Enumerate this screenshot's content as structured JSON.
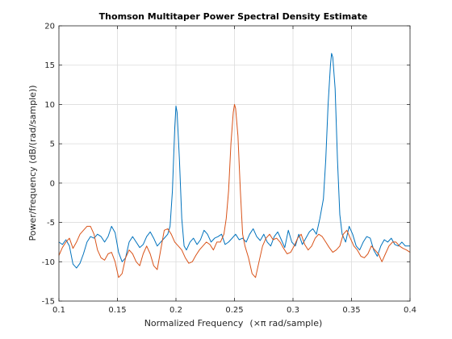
{
  "chart_data": {
    "type": "line",
    "title": "Thomson Multitaper Power Spectral Density Estimate",
    "xlabel_main": "Normalized Frequency",
    "xlabel_unit": "(×π rad/sample)",
    "ylabel": "Power/frequency (dB/(rad/sample))",
    "xlim": [
      0.1,
      0.4
    ],
    "ylim": [
      -15,
      20
    ],
    "grid": true,
    "xticks": [
      "0.1",
      "0.15",
      "0.2",
      "0.25",
      "0.3",
      "0.35",
      "0.4"
    ],
    "yticks": [
      "-15",
      "-10",
      "-5",
      "0",
      "5",
      "10",
      "15",
      "20"
    ],
    "series": [
      {
        "color": "#0072bd",
        "x": [
          0.1,
          0.103,
          0.106,
          0.109,
          0.112,
          0.115,
          0.118,
          0.121,
          0.124,
          0.127,
          0.13,
          0.133,
          0.136,
          0.139,
          0.142,
          0.145,
          0.148,
          0.151,
          0.154,
          0.157,
          0.16,
          0.163,
          0.166,
          0.169,
          0.172,
          0.175,
          0.178,
          0.181,
          0.184,
          0.187,
          0.19,
          0.193,
          0.195,
          0.197,
          0.199,
          0.2,
          0.201,
          0.203,
          0.205,
          0.207,
          0.209,
          0.212,
          0.215,
          0.218,
          0.221,
          0.224,
          0.227,
          0.23,
          0.233,
          0.236,
          0.239,
          0.242,
          0.245,
          0.248,
          0.251,
          0.254,
          0.257,
          0.26,
          0.263,
          0.266,
          0.269,
          0.272,
          0.275,
          0.278,
          0.281,
          0.284,
          0.287,
          0.29,
          0.293,
          0.296,
          0.299,
          0.302,
          0.305,
          0.308,
          0.311,
          0.314,
          0.317,
          0.32,
          0.323,
          0.326,
          0.328,
          0.33,
          0.332,
          0.333,
          0.334,
          0.336,
          0.338,
          0.34,
          0.342,
          0.345,
          0.348,
          0.351,
          0.354,
          0.357,
          0.36,
          0.363,
          0.366,
          0.369,
          0.372,
          0.375,
          0.378,
          0.381,
          0.384,
          0.387,
          0.39,
          0.393,
          0.396,
          0.4
        ],
        "y": [
          -7.5,
          -7.8,
          -7.2,
          -8.0,
          -10.3,
          -10.8,
          -10.2,
          -9.0,
          -7.5,
          -6.8,
          -7.0,
          -6.5,
          -6.8,
          -7.5,
          -6.8,
          -5.5,
          -6.3,
          -8.8,
          -10.0,
          -9.5,
          -7.5,
          -6.8,
          -7.5,
          -8.2,
          -7.8,
          -6.8,
          -6.2,
          -7.0,
          -8.0,
          -7.5,
          -7.0,
          -6.5,
          -5.5,
          -1.0,
          7.0,
          9.8,
          9.0,
          3.0,
          -4.5,
          -8.0,
          -8.5,
          -7.5,
          -7.0,
          -7.8,
          -7.2,
          -6.0,
          -6.5,
          -7.5,
          -7.0,
          -6.8,
          -6.5,
          -7.8,
          -7.5,
          -7.0,
          -6.5,
          -7.2,
          -7.0,
          -7.5,
          -6.5,
          -5.8,
          -6.8,
          -7.3,
          -6.5,
          -7.5,
          -8.0,
          -6.8,
          -6.2,
          -7.2,
          -8.2,
          -6.0,
          -7.5,
          -8.0,
          -6.5,
          -7.8,
          -7.0,
          -6.2,
          -5.8,
          -6.5,
          -4.5,
          -2.0,
          3.0,
          10.0,
          15.0,
          16.5,
          16.0,
          12.0,
          3.0,
          -4.0,
          -6.5,
          -7.5,
          -5.5,
          -6.5,
          -8.0,
          -8.5,
          -7.5,
          -6.8,
          -7.0,
          -8.5,
          -9.3,
          -8.0,
          -7.2,
          -7.5,
          -7.0,
          -7.8,
          -8.0,
          -7.5,
          -8.0,
          -8.0
        ]
      },
      {
        "color": "#d95319",
        "x": [
          0.1,
          0.103,
          0.106,
          0.109,
          0.112,
          0.115,
          0.118,
          0.121,
          0.124,
          0.127,
          0.13,
          0.133,
          0.136,
          0.139,
          0.142,
          0.145,
          0.148,
          0.151,
          0.154,
          0.157,
          0.16,
          0.163,
          0.166,
          0.169,
          0.172,
          0.175,
          0.178,
          0.181,
          0.184,
          0.187,
          0.19,
          0.193,
          0.196,
          0.199,
          0.202,
          0.205,
          0.208,
          0.211,
          0.214,
          0.217,
          0.22,
          0.223,
          0.226,
          0.229,
          0.232,
          0.235,
          0.238,
          0.241,
          0.243,
          0.245,
          0.247,
          0.249,
          0.25,
          0.251,
          0.253,
          0.255,
          0.257,
          0.259,
          0.262,
          0.265,
          0.268,
          0.271,
          0.274,
          0.277,
          0.28,
          0.283,
          0.286,
          0.289,
          0.292,
          0.295,
          0.298,
          0.301,
          0.304,
          0.307,
          0.31,
          0.313,
          0.316,
          0.319,
          0.322,
          0.325,
          0.328,
          0.331,
          0.334,
          0.337,
          0.34,
          0.343,
          0.346,
          0.349,
          0.352,
          0.355,
          0.358,
          0.361,
          0.364,
          0.367,
          0.37,
          0.373,
          0.376,
          0.379,
          0.382,
          0.385,
          0.388,
          0.391,
          0.394,
          0.397,
          0.4
        ],
        "y": [
          -9.2,
          -8.2,
          -7.5,
          -7.0,
          -8.3,
          -7.5,
          -6.5,
          -6.0,
          -5.5,
          -5.5,
          -6.5,
          -8.5,
          -9.5,
          -9.8,
          -9.0,
          -8.8,
          -10.0,
          -12.0,
          -11.5,
          -9.5,
          -8.5,
          -9.0,
          -10.0,
          -10.5,
          -9.0,
          -8.0,
          -9.0,
          -10.5,
          -11.0,
          -8.5,
          -6.0,
          -5.8,
          -6.5,
          -7.5,
          -8.0,
          -8.5,
          -9.5,
          -10.2,
          -10.0,
          -9.2,
          -8.5,
          -8.0,
          -7.5,
          -7.8,
          -8.5,
          -7.5,
          -7.5,
          -6.5,
          -4.5,
          -1.0,
          5.0,
          9.0,
          10.0,
          9.5,
          6.0,
          -1.0,
          -6.5,
          -8.0,
          -9.5,
          -11.5,
          -12.0,
          -10.0,
          -8.0,
          -7.0,
          -6.5,
          -7.2,
          -7.0,
          -7.5,
          -8.3,
          -9.0,
          -8.8,
          -8.0,
          -7.0,
          -6.5,
          -7.8,
          -8.5,
          -8.0,
          -7.0,
          -6.5,
          -6.8,
          -7.5,
          -8.2,
          -8.8,
          -8.5,
          -8.0,
          -6.5,
          -6.0,
          -7.0,
          -8.0,
          -8.5,
          -9.3,
          -9.5,
          -9.0,
          -8.0,
          -8.5,
          -9.0,
          -10.0,
          -9.0,
          -8.0,
          -7.5,
          -7.5,
          -8.0,
          -8.3,
          -8.5,
          -8.8
        ]
      }
    ]
  }
}
